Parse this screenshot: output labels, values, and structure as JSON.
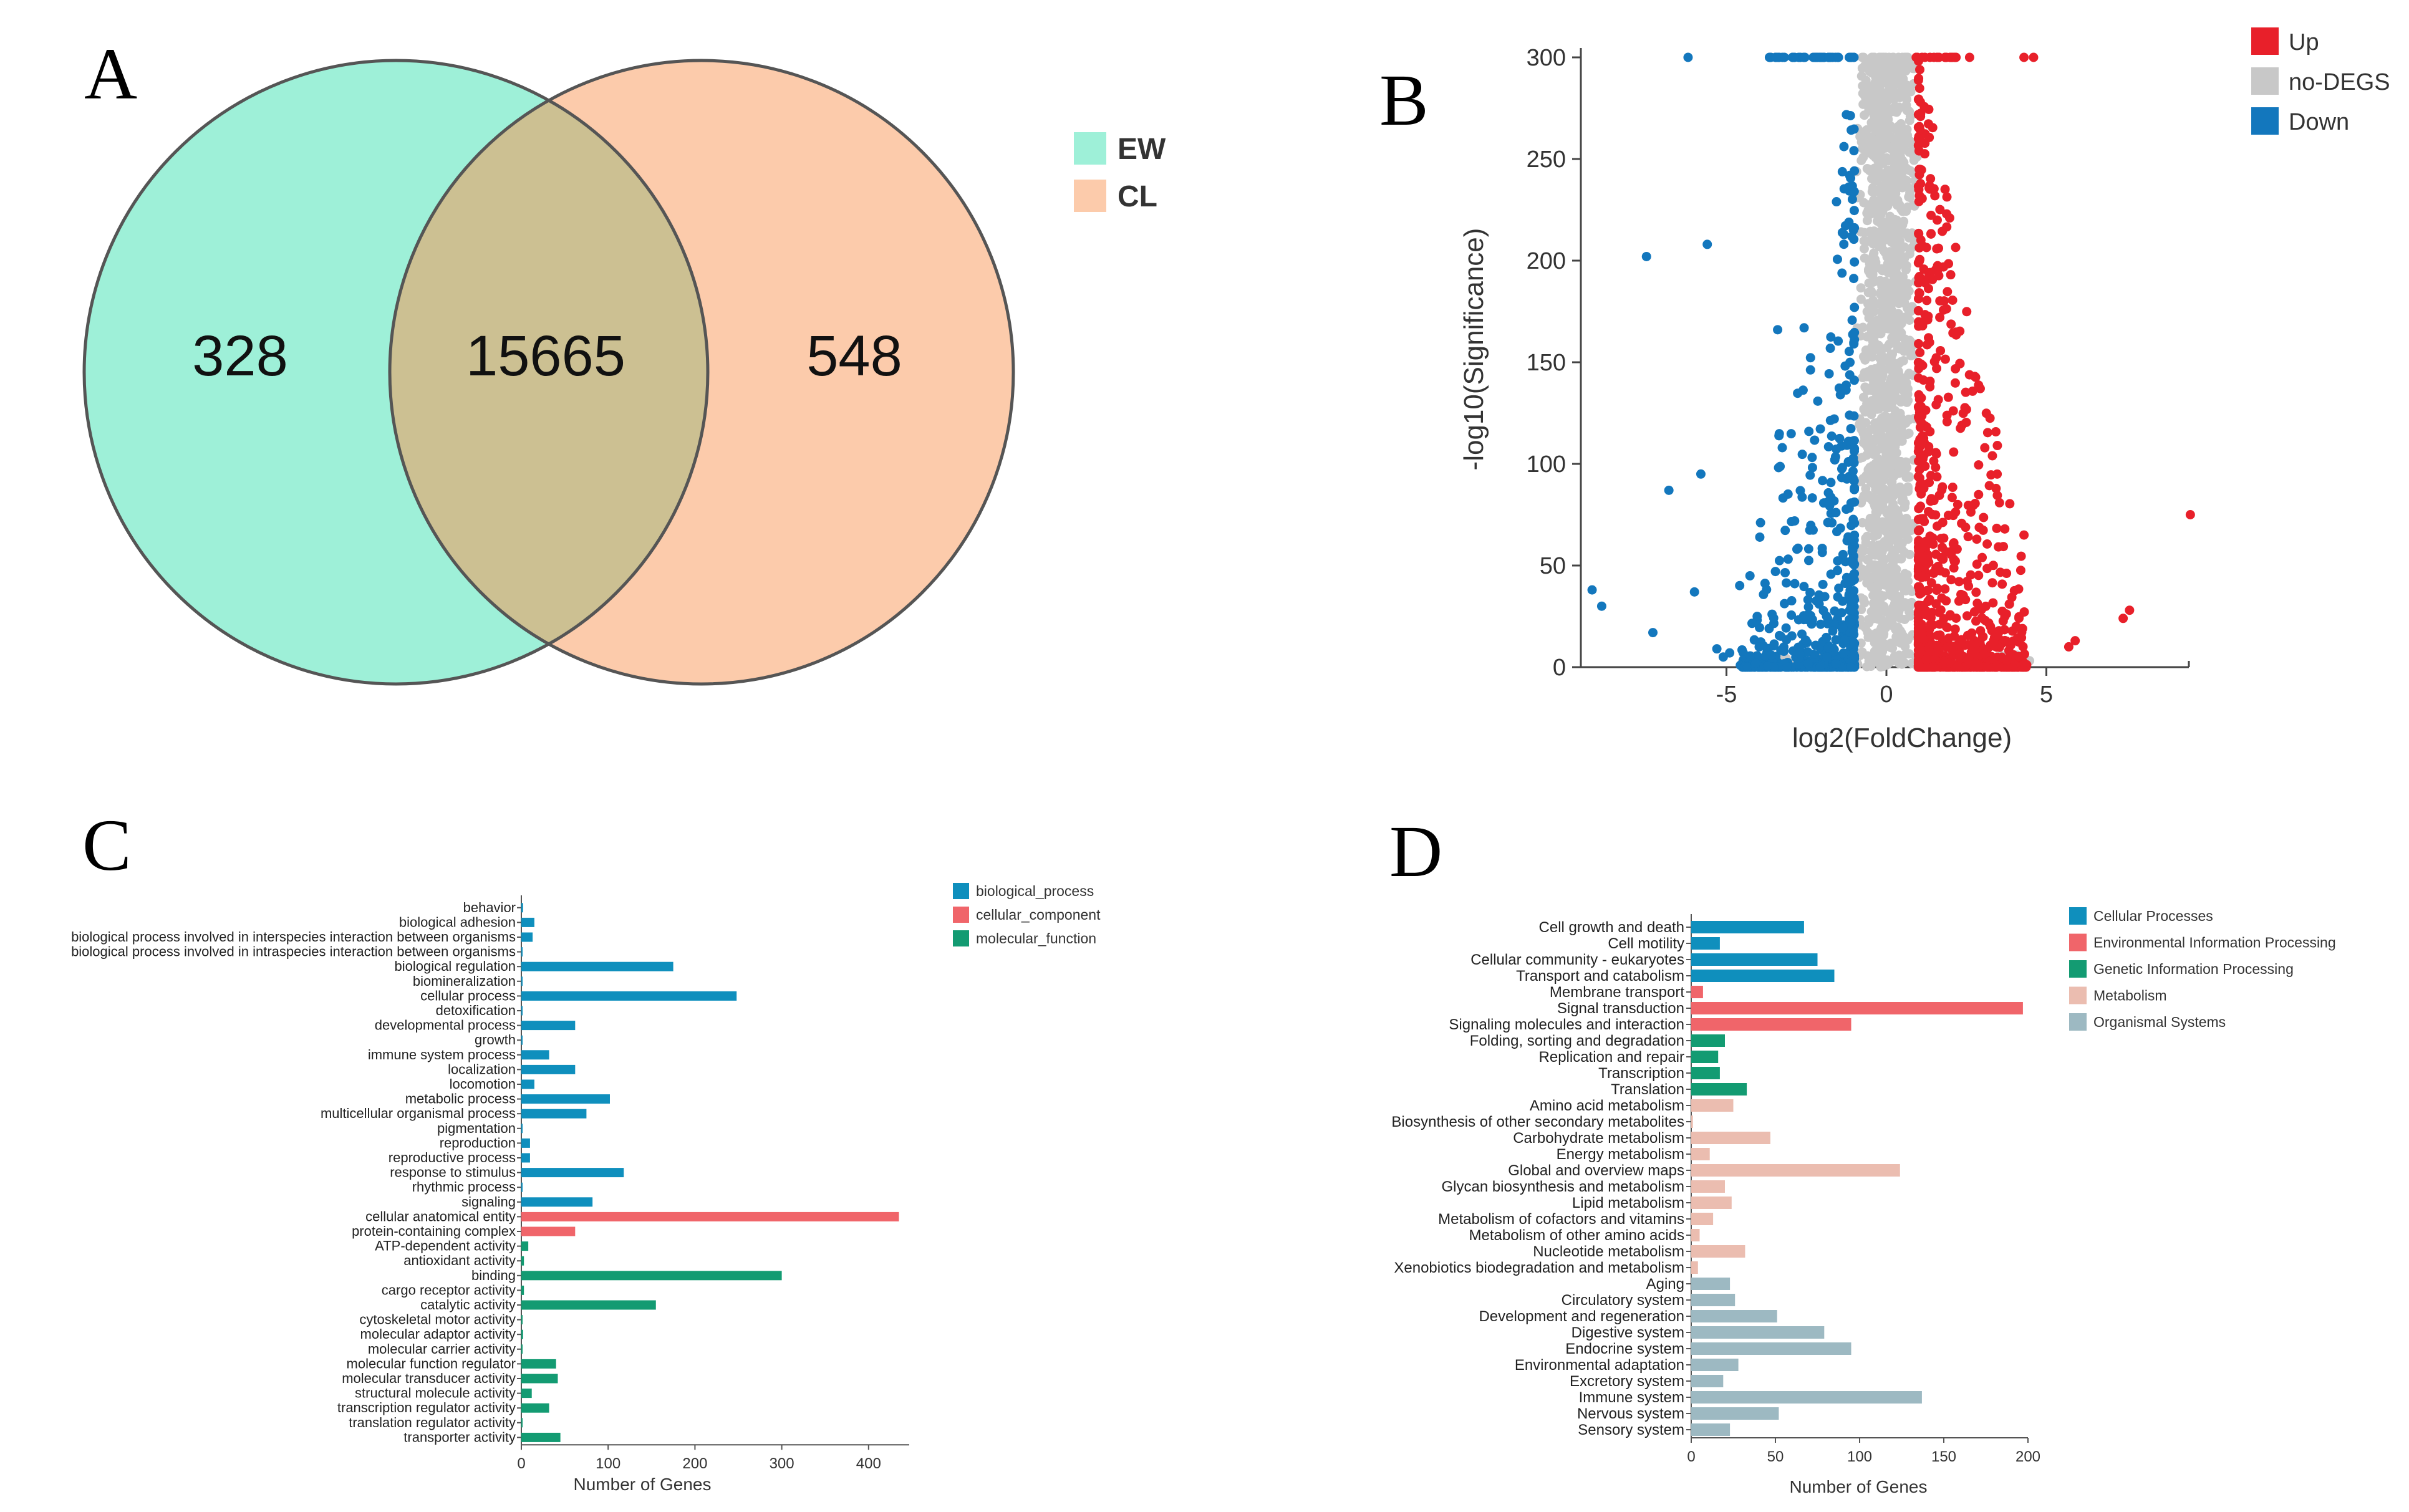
{
  "chart_data": [
    {
      "panel": "A",
      "type": "venn",
      "sets": [
        {
          "name": "EW",
          "unique": 328,
          "color": "#9ef0d8"
        },
        {
          "name": "CL",
          "unique": 548,
          "color": "#fccbab"
        }
      ],
      "intersection": 15665,
      "intersection_color": "#ccc092"
    },
    {
      "panel": "B",
      "type": "scatter",
      "xlabel": "log2(FoldChange)",
      "ylabel": "-log10(Significance)",
      "xlim": [
        -9.5,
        9.5
      ],
      "ylim": [
        0,
        305
      ],
      "xticks": [
        -5,
        0,
        5
      ],
      "yticks": [
        0,
        50,
        100,
        150,
        200,
        250,
        300
      ],
      "legend": [
        {
          "name": "Up",
          "color": "#e8202a"
        },
        {
          "name": "no-DEGS",
          "color": "#c8c8c8"
        },
        {
          "name": "Down",
          "color": "#1377bd"
        }
      ],
      "outliers": {
        "down": [
          [
            -9.2,
            38
          ],
          [
            -8.9,
            30
          ],
          [
            -7.5,
            202
          ],
          [
            -7.3,
            17
          ],
          [
            -6.8,
            87
          ],
          [
            -6.2,
            300
          ],
          [
            -6.0,
            37
          ],
          [
            -5.8,
            95
          ],
          [
            -5.6,
            208
          ],
          [
            -5.3,
            9
          ],
          [
            -3.4,
            166
          ],
          [
            -4.9,
            7
          ],
          [
            -5.1,
            5
          ]
        ],
        "up": [
          [
            9.5,
            75
          ],
          [
            7.6,
            28
          ],
          [
            7.4,
            24
          ],
          [
            5.9,
            13
          ],
          [
            5.7,
            10
          ],
          [
            4.3,
            65
          ],
          [
            4.6,
            300
          ],
          [
            4.3,
            300
          ],
          [
            3.7,
            68
          ],
          [
            2.6,
            300
          ]
        ]
      }
    },
    {
      "panel": "C",
      "type": "bar",
      "orientation": "horizontal",
      "xlabel": "Number of Genes",
      "xlim": [
        0,
        440
      ],
      "xticks": [
        0,
        100,
        200,
        300,
        400
      ],
      "legend": [
        {
          "name": "biological_process",
          "color": "#0f8fbd"
        },
        {
          "name": "cellular_component",
          "color": "#f0656a"
        },
        {
          "name": "molecular_function",
          "color": "#139b72"
        }
      ],
      "categories": [
        {
          "label": "behavior",
          "value": 2,
          "group": "biological_process"
        },
        {
          "label": "biological adhesion",
          "value": 15,
          "group": "biological_process"
        },
        {
          "label": "biological process involved in interspecies interaction between organisms",
          "value": 13,
          "group": "biological_process"
        },
        {
          "label": "biological process involved in intraspecies interaction between organisms",
          "value": 1,
          "group": "biological_process"
        },
        {
          "label": "biological regulation",
          "value": 175,
          "group": "biological_process"
        },
        {
          "label": "biomineralization",
          "value": 1,
          "group": "biological_process"
        },
        {
          "label": "cellular process",
          "value": 248,
          "group": "biological_process"
        },
        {
          "label": "detoxification",
          "value": 1,
          "group": "biological_process"
        },
        {
          "label": "developmental process",
          "value": 62,
          "group": "biological_process"
        },
        {
          "label": "growth",
          "value": 1,
          "group": "biological_process"
        },
        {
          "label": "immune system process",
          "value": 32,
          "group": "biological_process"
        },
        {
          "label": "localization",
          "value": 62,
          "group": "biological_process"
        },
        {
          "label": "locomotion",
          "value": 15,
          "group": "biological_process"
        },
        {
          "label": "metabolic process",
          "value": 102,
          "group": "biological_process"
        },
        {
          "label": "multicellular organismal process",
          "value": 75,
          "group": "biological_process"
        },
        {
          "label": "pigmentation",
          "value": 1,
          "group": "biological_process"
        },
        {
          "label": "reproduction",
          "value": 10,
          "group": "biological_process"
        },
        {
          "label": "reproductive process",
          "value": 10,
          "group": "biological_process"
        },
        {
          "label": "response to stimulus",
          "value": 118,
          "group": "biological_process"
        },
        {
          "label": "rhythmic process",
          "value": 1,
          "group": "biological_process"
        },
        {
          "label": "signaling",
          "value": 82,
          "group": "biological_process"
        },
        {
          "label": "cellular anatomical entity",
          "value": 435,
          "group": "cellular_component"
        },
        {
          "label": "protein-containing complex",
          "value": 62,
          "group": "cellular_component"
        },
        {
          "label": "ATP-dependent activity",
          "value": 8,
          "group": "molecular_function"
        },
        {
          "label": "antioxidant activity",
          "value": 3,
          "group": "molecular_function"
        },
        {
          "label": "binding",
          "value": 300,
          "group": "molecular_function"
        },
        {
          "label": "cargo receptor activity",
          "value": 3,
          "group": "molecular_function"
        },
        {
          "label": "catalytic activity",
          "value": 155,
          "group": "molecular_function"
        },
        {
          "label": "cytoskeletal motor activity",
          "value": 1,
          "group": "molecular_function"
        },
        {
          "label": "molecular adaptor activity",
          "value": 2,
          "group": "molecular_function"
        },
        {
          "label": "molecular carrier activity",
          "value": 1,
          "group": "molecular_function"
        },
        {
          "label": "molecular function regulator",
          "value": 40,
          "group": "molecular_function"
        },
        {
          "label": "molecular transducer activity",
          "value": 42,
          "group": "molecular_function"
        },
        {
          "label": "structural molecule activity",
          "value": 12,
          "group": "molecular_function"
        },
        {
          "label": "transcription regulator activity",
          "value": 32,
          "group": "molecular_function"
        },
        {
          "label": "translation regulator activity",
          "value": 1,
          "group": "molecular_function"
        },
        {
          "label": "transporter activity",
          "value": 45,
          "group": "molecular_function"
        }
      ]
    },
    {
      "panel": "D",
      "type": "bar",
      "orientation": "horizontal",
      "xlabel": "Number of Genes",
      "xlim": [
        0,
        200
      ],
      "xticks": [
        0,
        50,
        100,
        150,
        200
      ],
      "legend": [
        {
          "name": "Cellular Processes",
          "color": "#0f8fbd"
        },
        {
          "name": "Environmental Information Processing",
          "color": "#f0656a"
        },
        {
          "name": "Genetic Information Processing",
          "color": "#139b72"
        },
        {
          "name": "Metabolism",
          "color": "#ebbdb0"
        },
        {
          "name": "Organismal Systems",
          "color": "#9db9c2"
        }
      ],
      "categories": [
        {
          "label": "Cell growth and death",
          "value": 67,
          "group": "Cellular Processes"
        },
        {
          "label": "Cell motility",
          "value": 17,
          "group": "Cellular Processes"
        },
        {
          "label": "Cellular community - eukaryotes",
          "value": 75,
          "group": "Cellular Processes"
        },
        {
          "label": "Transport and catabolism",
          "value": 85,
          "group": "Cellular Processes"
        },
        {
          "label": "Membrane transport",
          "value": 7,
          "group": "Environmental Information Processing"
        },
        {
          "label": "Signal transduction",
          "value": 197,
          "group": "Environmental Information Processing"
        },
        {
          "label": "Signaling molecules and interaction",
          "value": 95,
          "group": "Environmental Information Processing"
        },
        {
          "label": "Folding, sorting and degradation",
          "value": 20,
          "group": "Genetic Information Processing"
        },
        {
          "label": "Replication and repair",
          "value": 16,
          "group": "Genetic Information Processing"
        },
        {
          "label": "Transcription",
          "value": 17,
          "group": "Genetic Information Processing"
        },
        {
          "label": "Translation",
          "value": 33,
          "group": "Genetic Information Processing"
        },
        {
          "label": "Amino acid metabolism",
          "value": 25,
          "group": "Metabolism"
        },
        {
          "label": "Biosynthesis of other secondary metabolites",
          "value": 1,
          "group": "Metabolism"
        },
        {
          "label": "Carbohydrate metabolism",
          "value": 47,
          "group": "Metabolism"
        },
        {
          "label": "Energy metabolism",
          "value": 11,
          "group": "Metabolism"
        },
        {
          "label": "Global and overview maps",
          "value": 124,
          "group": "Metabolism"
        },
        {
          "label": "Glycan biosynthesis and metabolism",
          "value": 20,
          "group": "Metabolism"
        },
        {
          "label": "Lipid metabolism",
          "value": 24,
          "group": "Metabolism"
        },
        {
          "label": "Metabolism of cofactors and vitamins",
          "value": 13,
          "group": "Metabolism"
        },
        {
          "label": "Metabolism of other amino acids",
          "value": 5,
          "group": "Metabolism"
        },
        {
          "label": "Nucleotide metabolism",
          "value": 32,
          "group": "Metabolism"
        },
        {
          "label": "Xenobiotics biodegradation and metabolism",
          "value": 4,
          "group": "Metabolism"
        },
        {
          "label": "Aging",
          "value": 23,
          "group": "Organismal Systems"
        },
        {
          "label": "Circulatory system",
          "value": 26,
          "group": "Organismal Systems"
        },
        {
          "label": "Development and regeneration",
          "value": 51,
          "group": "Organismal Systems"
        },
        {
          "label": "Digestive system",
          "value": 79,
          "group": "Organismal Systems"
        },
        {
          "label": "Endocrine system",
          "value": 95,
          "group": "Organismal Systems"
        },
        {
          "label": "Environmental adaptation",
          "value": 28,
          "group": "Organismal Systems"
        },
        {
          "label": "Excretory system",
          "value": 19,
          "group": "Organismal Systems"
        },
        {
          "label": "Immune system",
          "value": 137,
          "group": "Organismal Systems"
        },
        {
          "label": "Nervous system",
          "value": 52,
          "group": "Organismal Systems"
        },
        {
          "label": "Sensory system",
          "value": 23,
          "group": "Organismal Systems"
        }
      ]
    }
  ]
}
